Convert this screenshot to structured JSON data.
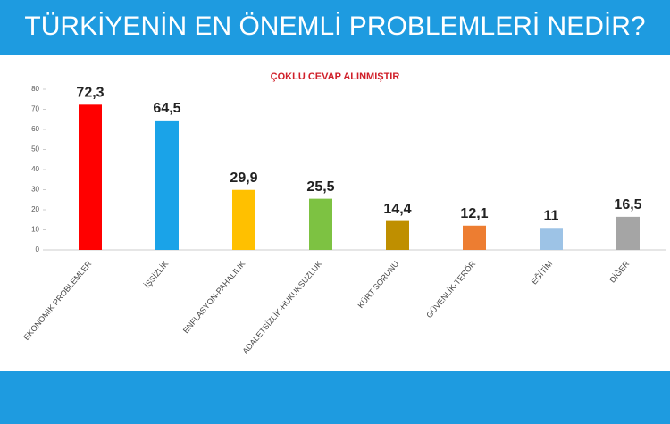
{
  "chart_data": {
    "type": "bar",
    "title": "TÜRKİYENİN EN ÖNEMLİ PROBLEMLERİ NEDİR?",
    "subtitle": "ÇOKLU CEVAP ALINMIŞTIR",
    "categories": [
      "EKONOMİK PROBLEMLER",
      "İŞSİZLİK",
      "ENFLASYON-PAHALILIK",
      "ADALETSİZLİK-HUKUKSUZLUK",
      "KÜRT SORUNU",
      "GÜVENLİK-TERÖR",
      "EĞİTİM",
      "DİĞER"
    ],
    "values": [
      72.3,
      64.5,
      29.9,
      25.5,
      14.4,
      12.1,
      11,
      16.5
    ],
    "value_labels": [
      "72,3",
      "64,5",
      "29,9",
      "25,5",
      "14,4",
      "12,1",
      "11",
      "16,5"
    ],
    "colors": [
      "#ff0000",
      "#1aa3e8",
      "#ffc000",
      "#7dc242",
      "#bf8f00",
      "#ed7d31",
      "#9dc3e6",
      "#a5a5a5"
    ],
    "ylim": [
      0,
      80
    ],
    "yticks": [
      0,
      10,
      20,
      30,
      40,
      50,
      60,
      70,
      80
    ],
    "grid": false
  }
}
